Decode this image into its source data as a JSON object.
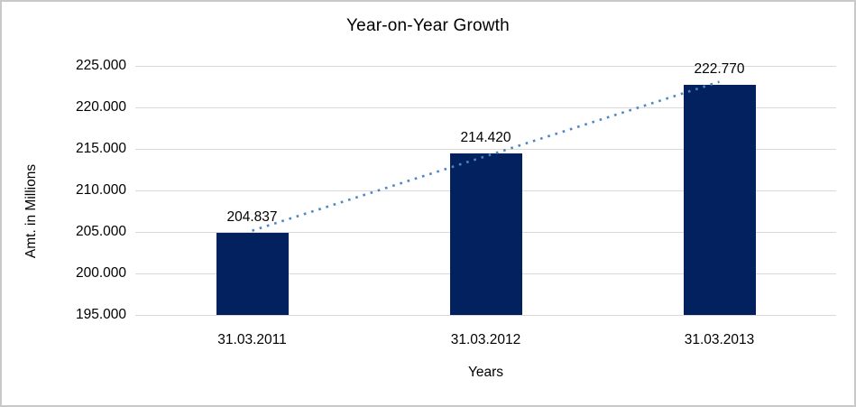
{
  "chart_data": {
    "type": "bar",
    "title": "Year-on-Year Growth",
    "xlabel": "Years",
    "ylabel": "Amt. in Millions",
    "categories": [
      "31.03.2011",
      "31.03.2012",
      "31.03.2013"
    ],
    "values": [
      204.837,
      214.42,
      222.77
    ],
    "value_labels": [
      "204.837",
      "214.420",
      "222.770"
    ],
    "ylim": [
      195,
      225
    ],
    "ytick_step": 5,
    "ytick_labels_top_to_bottom": [
      "225.000",
      "220.000",
      "215.000",
      "210.000",
      "205.000",
      "200.000",
      "195.000"
    ],
    "grid": true,
    "legend": "none",
    "colors": {
      "bar": "#02215e",
      "trendline": "#4a86c8",
      "gridline": "#d9d9d9",
      "text": "#000000",
      "canvas_border": "#c9c9c9",
      "background": "#ffffff"
    },
    "trendline": {
      "type": "linear",
      "style": "dotted"
    }
  }
}
